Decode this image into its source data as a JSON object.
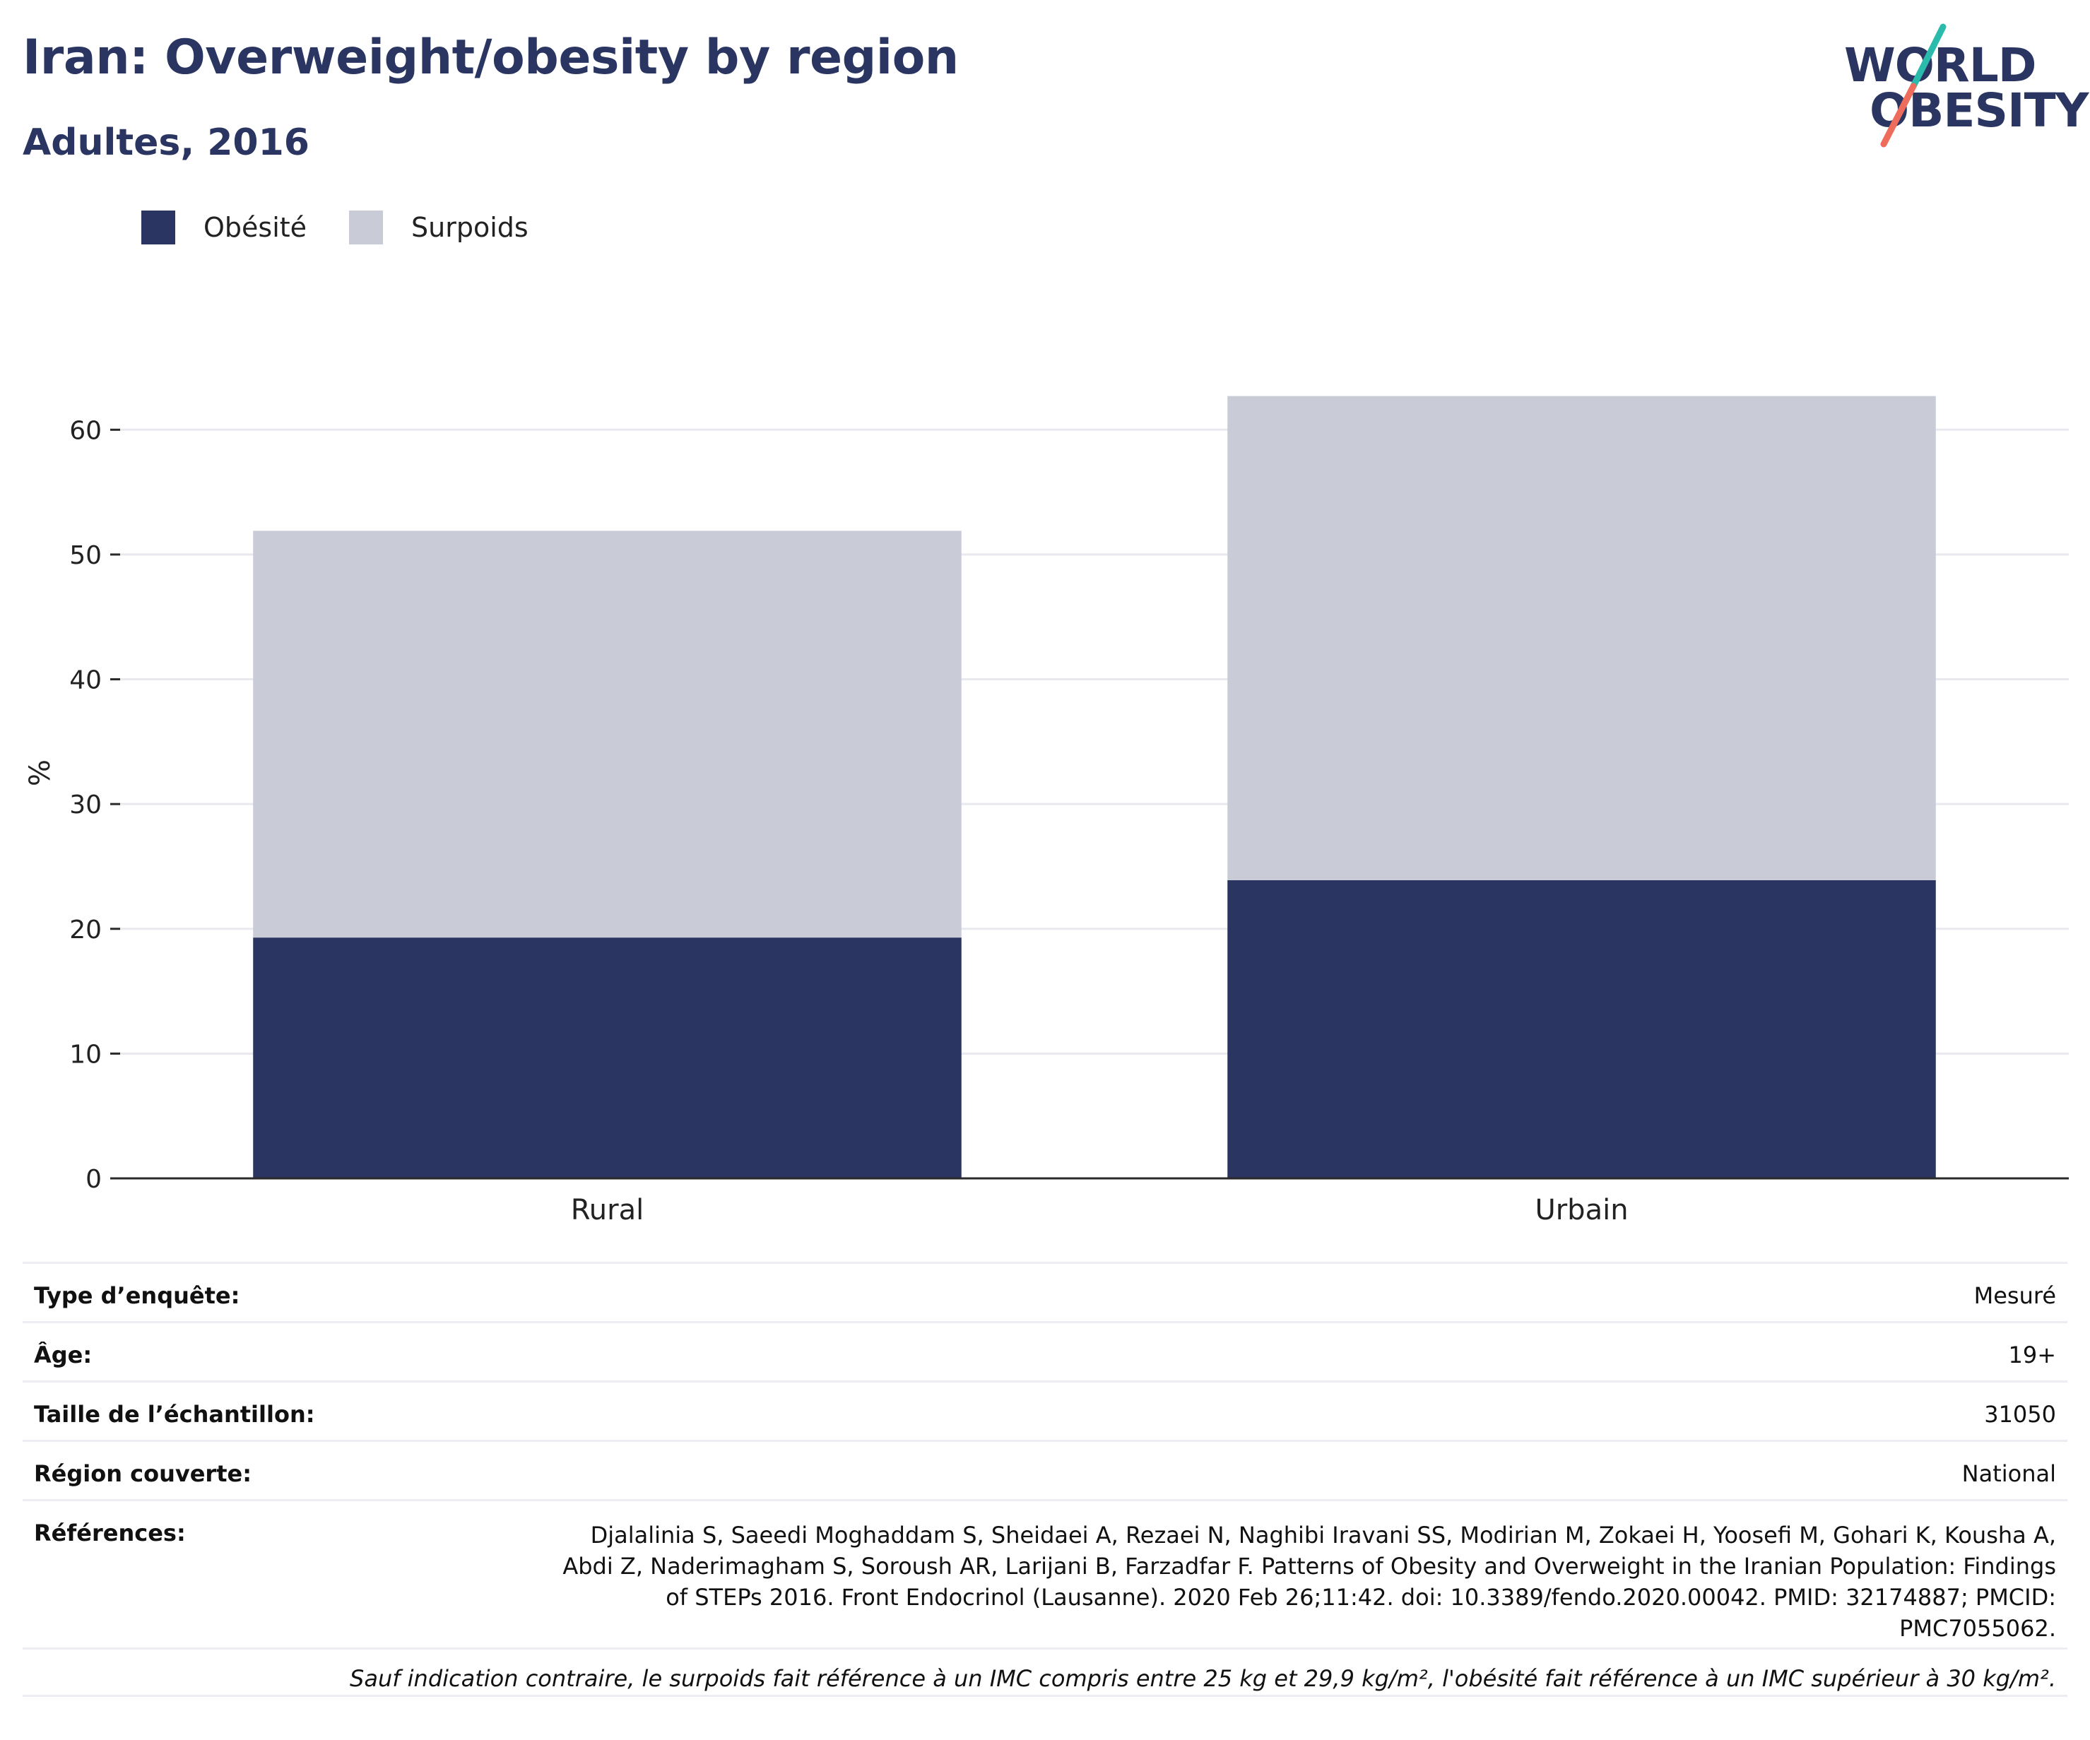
{
  "title": "Iran: Overweight/obesity by region",
  "subtitle": "Adultes, 2016",
  "logo": {
    "line1": "WORLD",
    "line2": "OBESITY",
    "slash_colors": [
      "#2bbbad",
      "#ee6c5b"
    ]
  },
  "colors": {
    "obesity": "#2a3661",
    "overweight": "#c9cbd6",
    "axis": "#2a2a2a",
    "grid": "#e8e9ef"
  },
  "legend": [
    {
      "label": "Obésité",
      "color": "#2a3661"
    },
    {
      "label": "Surpoids",
      "color": "#c9cbd6"
    }
  ],
  "chart_data": {
    "type": "bar",
    "stacked": true,
    "categories": [
      "Rural",
      "Urbain"
    ],
    "series": [
      {
        "name": "Obésité",
        "values": [
          19.3,
          23.9
        ]
      },
      {
        "name": "Surpoids",
        "values": [
          32.6,
          38.8
        ]
      }
    ],
    "xlabel": "",
    "ylabel": "%",
    "ylim": [
      0,
      65
    ],
    "yticks": [
      0,
      10,
      20,
      30,
      40,
      50,
      60
    ],
    "grid": true,
    "legend_position": "top-left"
  },
  "info": {
    "rows": [
      {
        "key": "Type d’enquête:",
        "value": "Mesuré"
      },
      {
        "key": "Âge:",
        "value": "19+"
      },
      {
        "key": "Taille de l’échantillon:",
        "value": "31050"
      },
      {
        "key": "Région couverte:",
        "value": "National"
      }
    ],
    "references_key": "Références:",
    "references_value": "Djalalinia S, Saeedi Moghaddam S, Sheidaei A, Rezaei N, Naghibi Iravani SS, Modirian M, Zokaei H, Yoosefi M, Gohari K, Kousha A, Abdi Z, Naderimagham S, Soroush AR, Larijani B, Farzadfar F. Patterns of Obesity and Overweight in the Iranian Population: Findings of STEPs 2016. Front Endocrinol (Lausanne). 2020 Feb 26;11:42. doi: 10.3389/fendo.2020.00042. PMID: 32174887; PMCID: PMC7055062.",
    "note": "Sauf indication contraire, le surpoids fait référence à un IMC compris entre 25 kg et 29,9 kg/m², l'obésité fait référence à un IMC supérieur à 30 kg/m²."
  }
}
